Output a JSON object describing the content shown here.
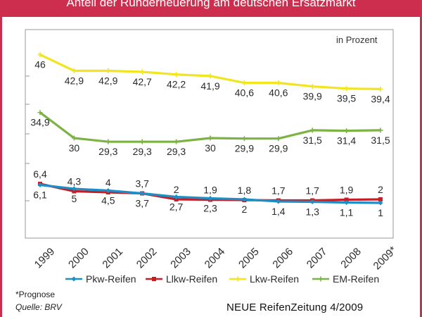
{
  "header": {
    "title": "Anteil der Runderneuerung am deutschen Ersatzmarkt"
  },
  "unit_label": "in Prozent",
  "footnote": "*Prognose",
  "source": "Quelle: BRV",
  "publisher": "NEUE ReifenZeitung 4/2009",
  "colors": {
    "frame": "#cd2e4e",
    "pkw": "#1e8fc6",
    "llkw": "#c81d25",
    "lkw": "#f2e51f",
    "em": "#7cb342"
  },
  "chart_data": {
    "type": "line",
    "title": "Anteil der Runderneuerung am deutschen Ersatzmarkt",
    "ylabel": "in Prozent",
    "xlabel": "",
    "ylim": [
      0,
      50
    ],
    "grid": false,
    "legend_position": "bottom",
    "categories": [
      "1999",
      "2000",
      "2001",
      "2002",
      "2003",
      "2004",
      "2005",
      "2006",
      "2007",
      "2008",
      "2009*"
    ],
    "series": [
      {
        "key": "lkw",
        "name": "Lkw-Reifen",
        "color": "#f2e51f",
        "marker": "cross",
        "values": [
          46,
          42.9,
          42.9,
          42.7,
          42.2,
          41.9,
          40.6,
          40.6,
          39.9,
          39.5,
          39.4
        ],
        "labels": [
          "46",
          "42,9",
          "42,9",
          "42,7",
          "42,2",
          "41,9",
          "40,6",
          "40,6",
          "39,9",
          "39,5",
          "39,4"
        ]
      },
      {
        "key": "em",
        "name": "EM-Reifen",
        "color": "#7cb342",
        "marker": "cross",
        "values": [
          34.9,
          30,
          29.3,
          29.3,
          29.3,
          30,
          29.9,
          29.9,
          31.5,
          31.4,
          31.5
        ],
        "labels": [
          "34,9",
          "30",
          "29,3",
          "29,3",
          "29,3",
          "30",
          "29,9",
          "29,9",
          "31,5",
          "31,4",
          "31,5"
        ]
      },
      {
        "key": "llkw",
        "name": "Llkw-Reifen",
        "color": "#c81d25",
        "marker": "square",
        "values": [
          6.4,
          4.3,
          4,
          3.7,
          2,
          1.9,
          1.8,
          1.7,
          1.7,
          1.9,
          2
        ],
        "labels": [
          "6,4",
          "4,3",
          "4",
          "3,7",
          "2",
          "1,9",
          "1,8",
          "1,7",
          "1,7",
          "1,9",
          "2"
        ]
      },
      {
        "key": "pkw",
        "name": "Pkw-Reifen",
        "color": "#1e8fc6",
        "marker": "diamond",
        "values": [
          6.1,
          5,
          4.5,
          3.7,
          2.7,
          2.3,
          2,
          1.4,
          1.3,
          1.1,
          1
        ],
        "labels": [
          "6,1",
          "5",
          "4,5",
          "3,7",
          "2,7",
          "2,3",
          "2",
          "1,4",
          "1,3",
          "1,1",
          "1"
        ]
      }
    ],
    "legend_order": [
      "pkw",
      "llkw",
      "lkw",
      "em"
    ]
  }
}
